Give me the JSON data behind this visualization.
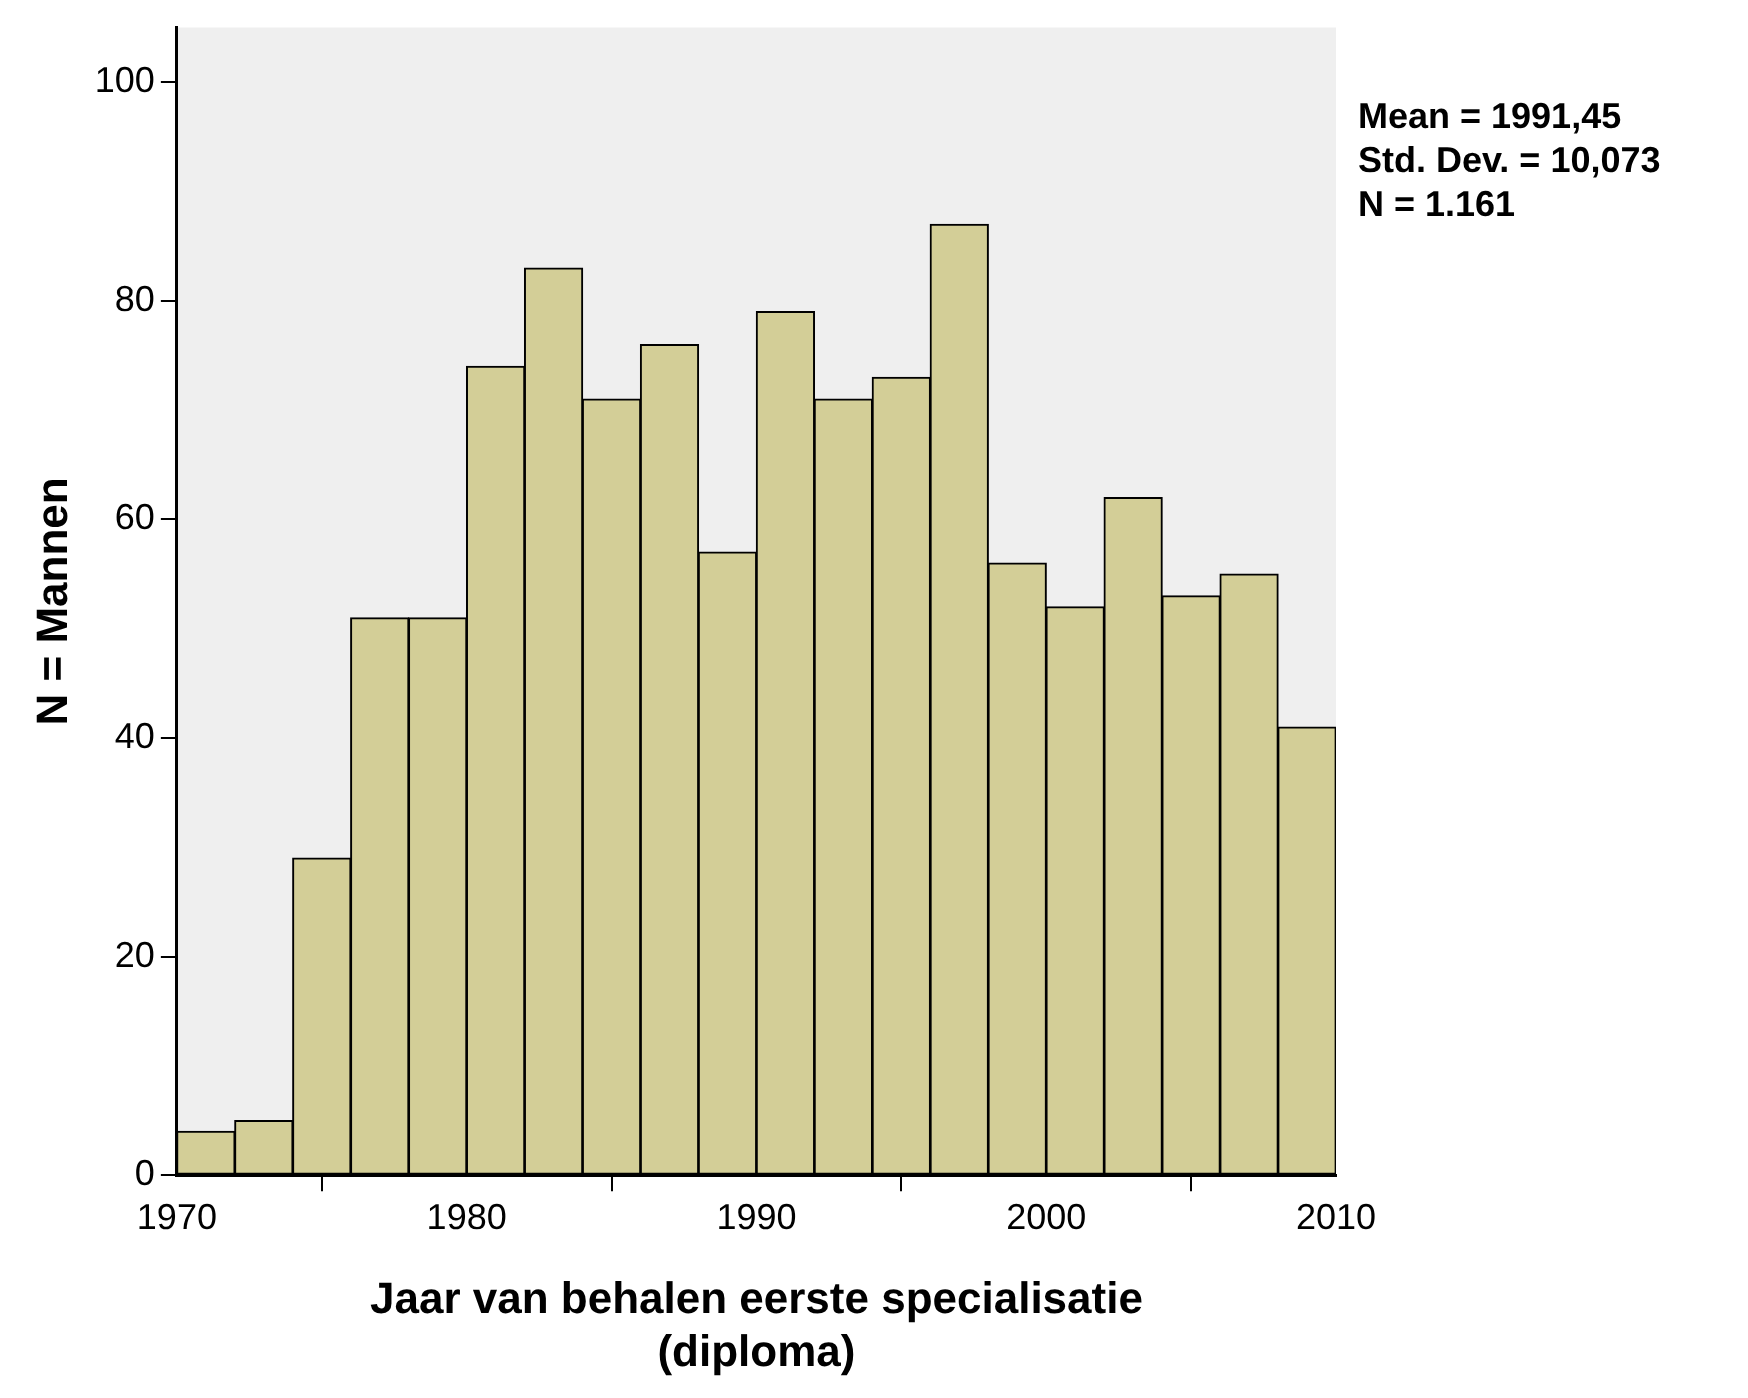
{
  "chart_data": {
    "type": "histogram",
    "xlabel": "Jaar van behalen eerste specialisatie\n(diploma)",
    "ylabel": "N = Mannen",
    "bins": [
      1970,
      1972,
      1974,
      1976,
      1978,
      1980,
      1982,
      1984,
      1986,
      1988,
      1990,
      1992,
      1994,
      1996,
      1998,
      2000,
      2002,
      2004,
      2006,
      2008,
      2010
    ],
    "values": [
      4,
      5,
      29,
      51,
      51,
      74,
      83,
      71,
      76,
      57,
      79,
      71,
      73,
      87,
      56,
      52,
      62,
      53,
      55,
      41
    ],
    "color": "#d3ce97",
    "xlim": [
      1970,
      2010
    ],
    "xticks": [
      1970,
      1980,
      1990,
      2000,
      2010
    ],
    "ylim": [
      0,
      105
    ],
    "yticks": [
      0,
      20,
      40,
      60,
      80,
      100
    ],
    "grid": false,
    "legend": false,
    "annotations": [
      "Mean = 1991,45",
      "Std. Dev. = 10,073",
      "N = 1.161"
    ]
  }
}
